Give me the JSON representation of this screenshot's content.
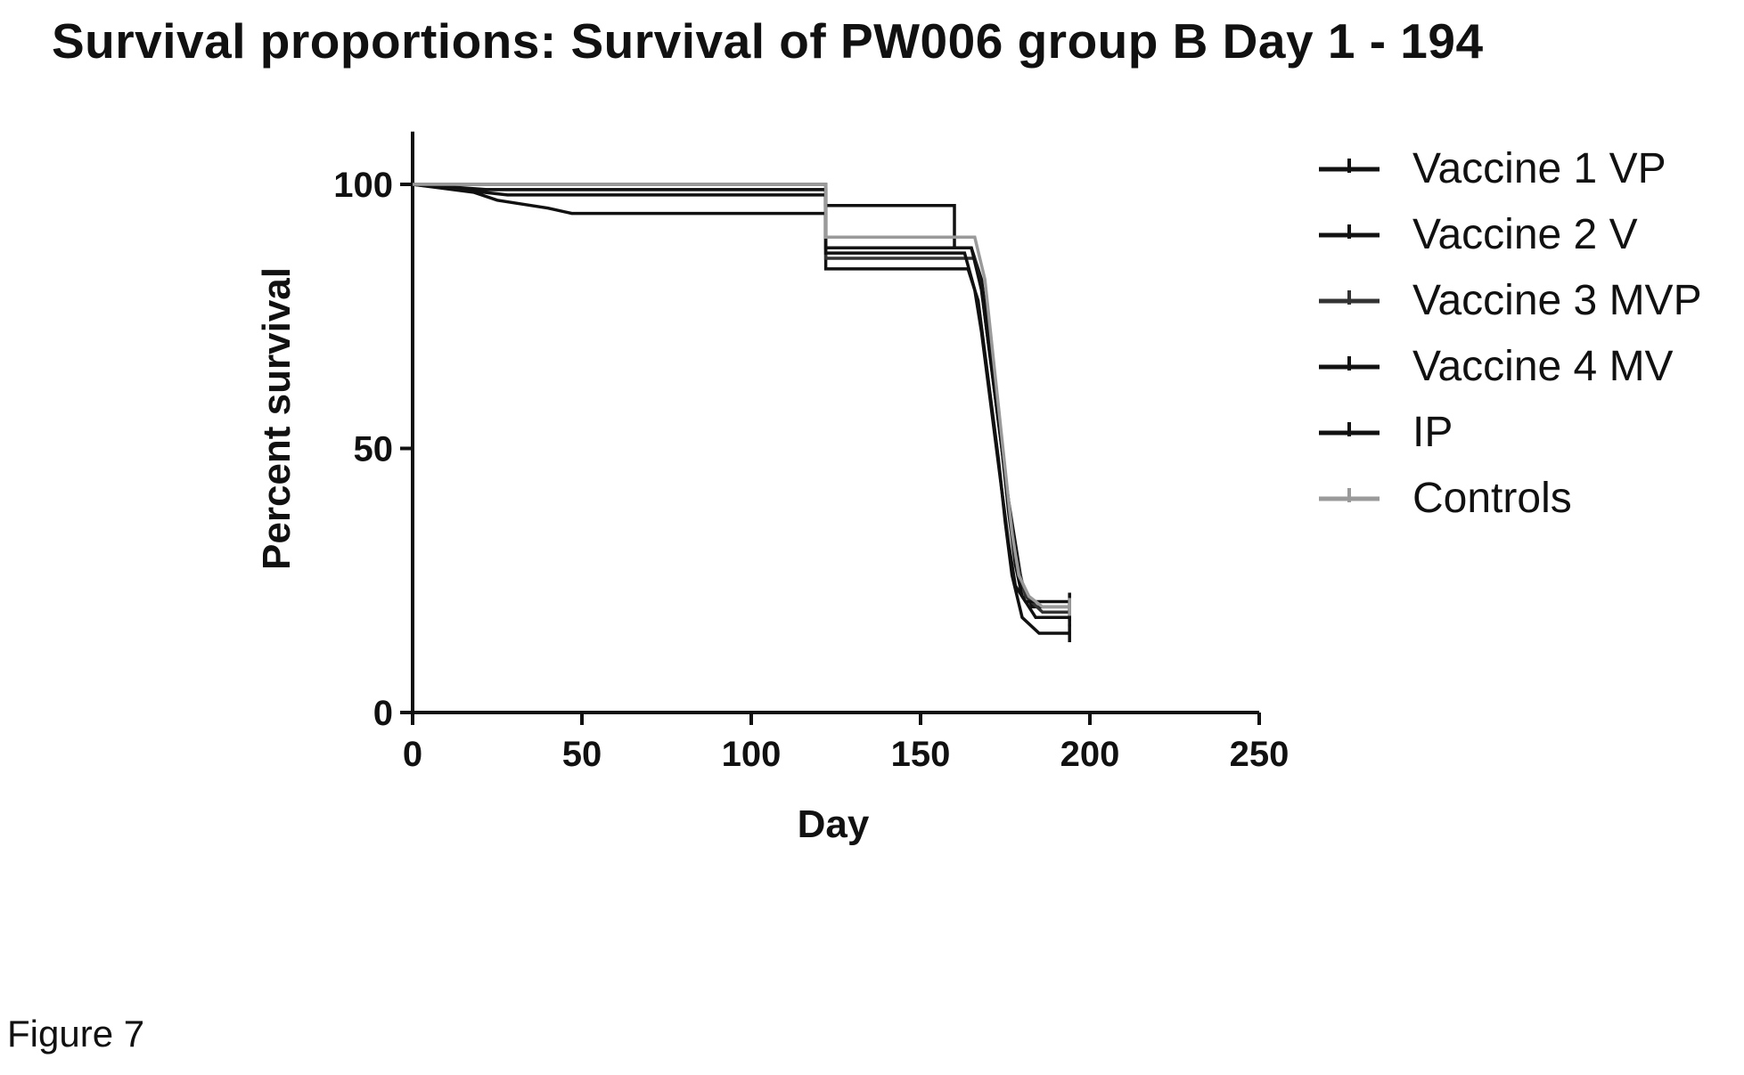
{
  "chart_data": {
    "type": "line",
    "title": "Survival proportions: Survival of PW006 group B Day 1 - 194",
    "xlabel": "Day",
    "ylabel": "Percent survival",
    "xlim": [
      0,
      250
    ],
    "ylim": [
      0,
      110
    ],
    "xticks": [
      0,
      50,
      100,
      150,
      200,
      250
    ],
    "yticks": [
      0,
      50,
      100
    ],
    "grid": false,
    "legend": "right",
    "series": [
      {
        "name": "Vaccine 1 VP",
        "color": "#111111",
        "x": [
          0,
          122,
          122,
          165,
          168,
          170,
          172,
          174,
          176,
          178,
          180,
          183,
          194
        ],
        "y": [
          100,
          100,
          88,
          88,
          82,
          72,
          62,
          50,
          40,
          32,
          24,
          20,
          20
        ]
      },
      {
        "name": "Vaccine 2 V",
        "color": "#111111",
        "x": [
          0,
          18,
          25,
          40,
          47,
          122,
          122,
          164,
          167,
          169,
          171,
          173,
          175,
          177,
          180,
          185,
          194
        ],
        "y": [
          100,
          98.5,
          97,
          95.5,
          94.5,
          94.5,
          84,
          84,
          78,
          68,
          58,
          48,
          36,
          26,
          18,
          15,
          15
        ]
      },
      {
        "name": "Vaccine 3 MVP",
        "color": "#333333",
        "x": [
          0,
          20,
          122,
          122,
          166,
          168,
          170,
          172,
          174,
          176,
          178,
          181,
          186,
          194
        ],
        "y": [
          100,
          99,
          99,
          86,
          86,
          80,
          70,
          60,
          50,
          40,
          30,
          22,
          19,
          19
        ]
      },
      {
        "name": "Vaccine 4 MV",
        "color": "#111111",
        "x": [
          0,
          22,
          122,
          122,
          160,
          160,
          165,
          168,
          170,
          172,
          174,
          176,
          178,
          180,
          184,
          194
        ],
        "y": [
          100,
          99,
          99,
          96,
          96,
          88,
          88,
          80,
          70,
          60,
          50,
          38,
          28,
          22,
          18,
          18
        ]
      },
      {
        "name": "IP",
        "color": "#111111",
        "x": [
          0,
          28,
          122,
          122,
          163,
          166,
          168,
          170,
          172,
          174,
          176,
          178,
          181,
          194
        ],
        "y": [
          100,
          98,
          98,
          87,
          87,
          80,
          72,
          62,
          52,
          42,
          32,
          24,
          21,
          21
        ]
      },
      {
        "name": "Controls",
        "color": "#9a9a9a",
        "x": [
          0,
          122,
          122,
          166,
          169,
          171,
          173,
          175,
          177,
          179,
          182,
          186,
          194
        ],
        "y": [
          100,
          100,
          90,
          90,
          82,
          70,
          58,
          46,
          34,
          26,
          22,
          20,
          20
        ]
      }
    ]
  },
  "figure_caption": "Figure 7"
}
